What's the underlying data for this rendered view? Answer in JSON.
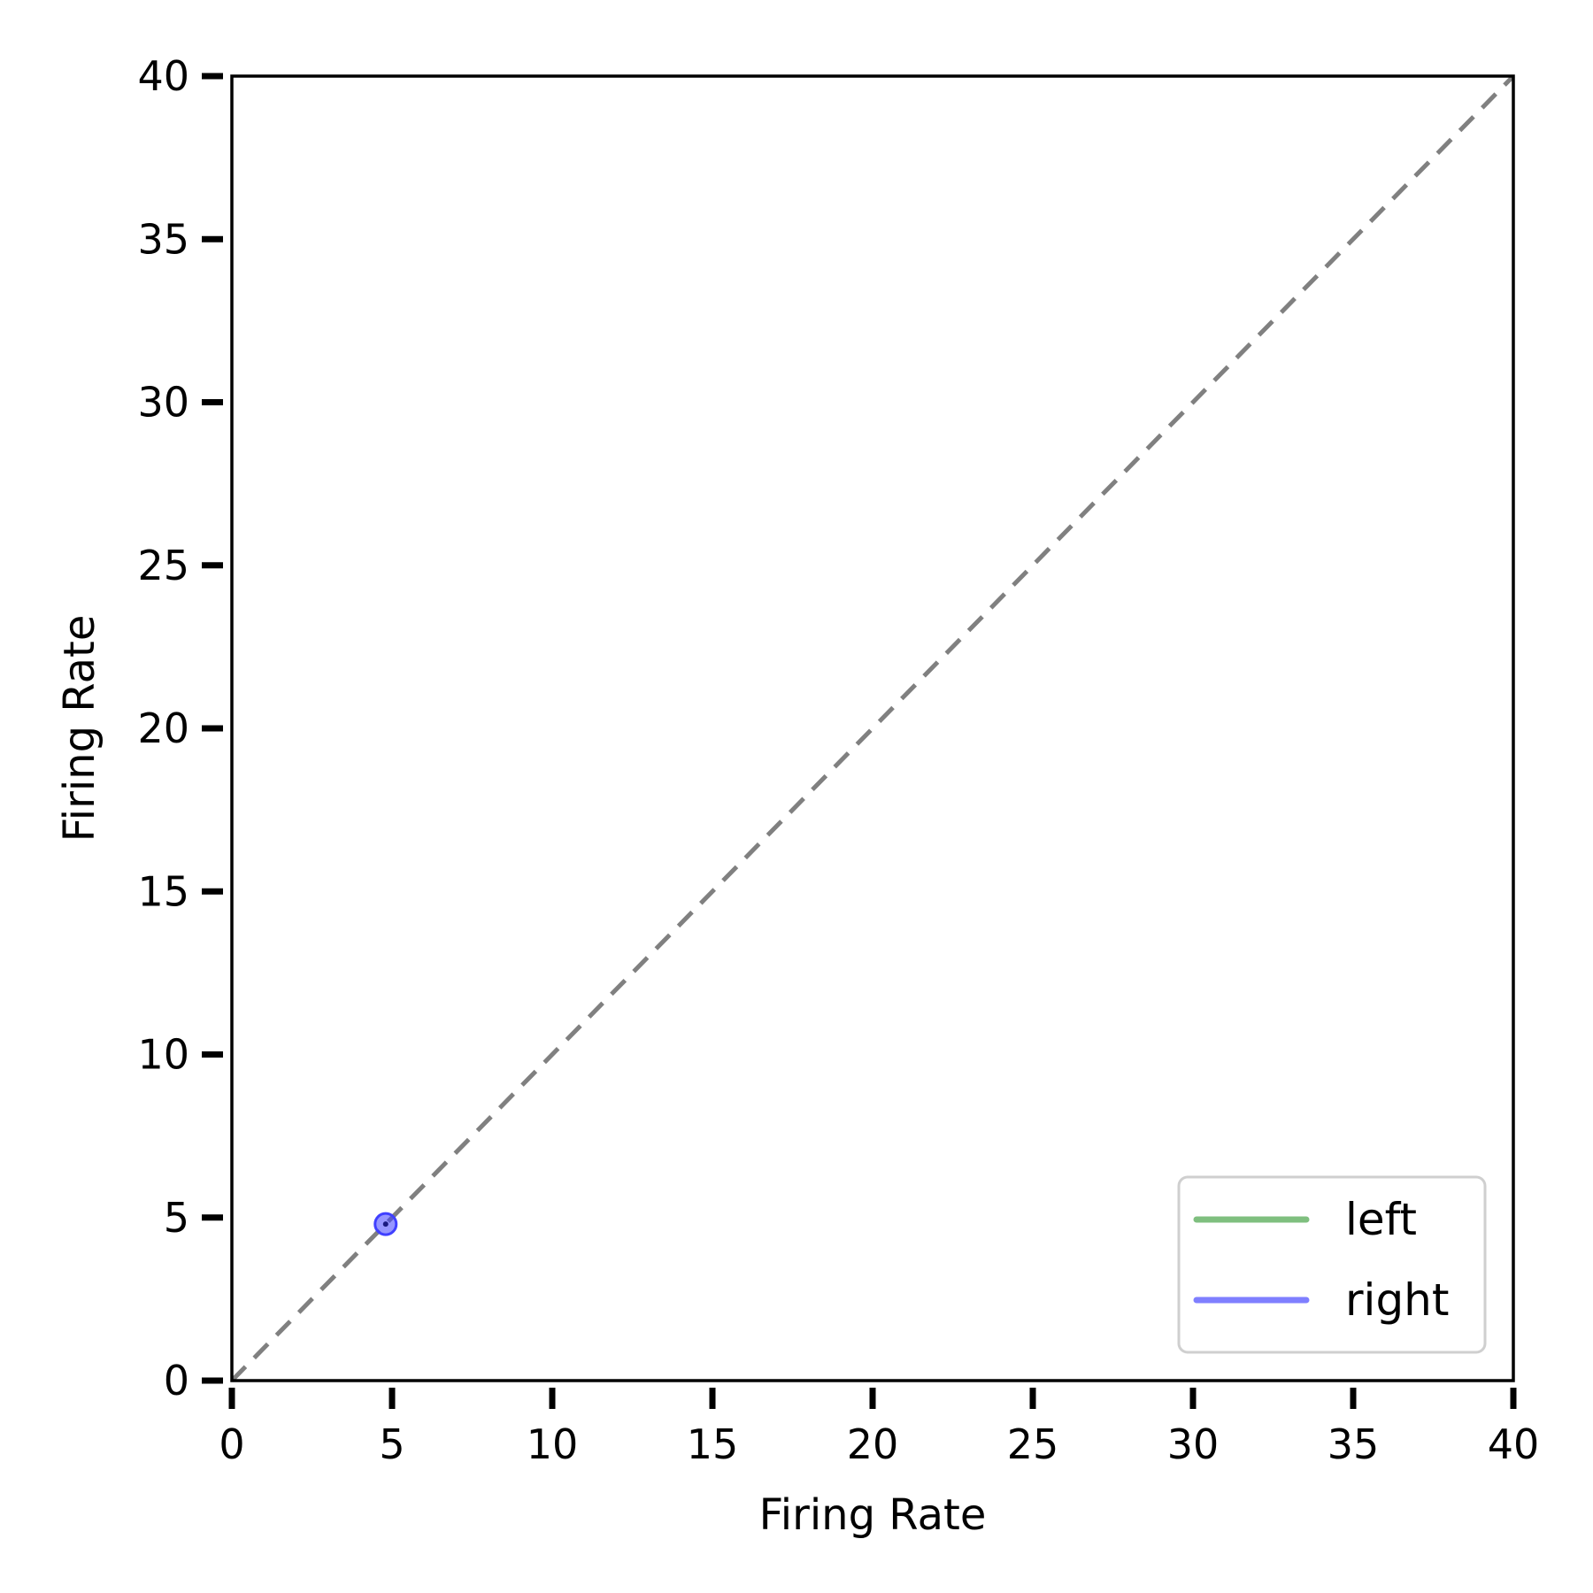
{
  "chart_data": {
    "type": "scatter",
    "title": "",
    "xlabel": "Firing Rate",
    "ylabel": "Firing Rate",
    "xlim": [
      0,
      40
    ],
    "ylim": [
      0,
      40
    ],
    "xticks": [
      0,
      5,
      10,
      15,
      20,
      25,
      30,
      35,
      40
    ],
    "yticks": [
      0,
      5,
      10,
      15,
      20,
      25,
      30,
      35,
      40
    ],
    "grid": false,
    "legend": {
      "position": "lower-right",
      "entries": [
        {
          "label": "left",
          "color": "#7fbf7f"
        },
        {
          "label": "right",
          "color": "#7f7fff"
        }
      ]
    },
    "reference_line": {
      "style": "dashed",
      "color": "#808080",
      "from": [
        0,
        0
      ],
      "to": [
        40,
        40
      ]
    },
    "series": [
      {
        "legend_label": "right",
        "color": "#4040ff",
        "points": [
          {
            "x": 4.8,
            "y": 4.8
          }
        ]
      }
    ]
  }
}
